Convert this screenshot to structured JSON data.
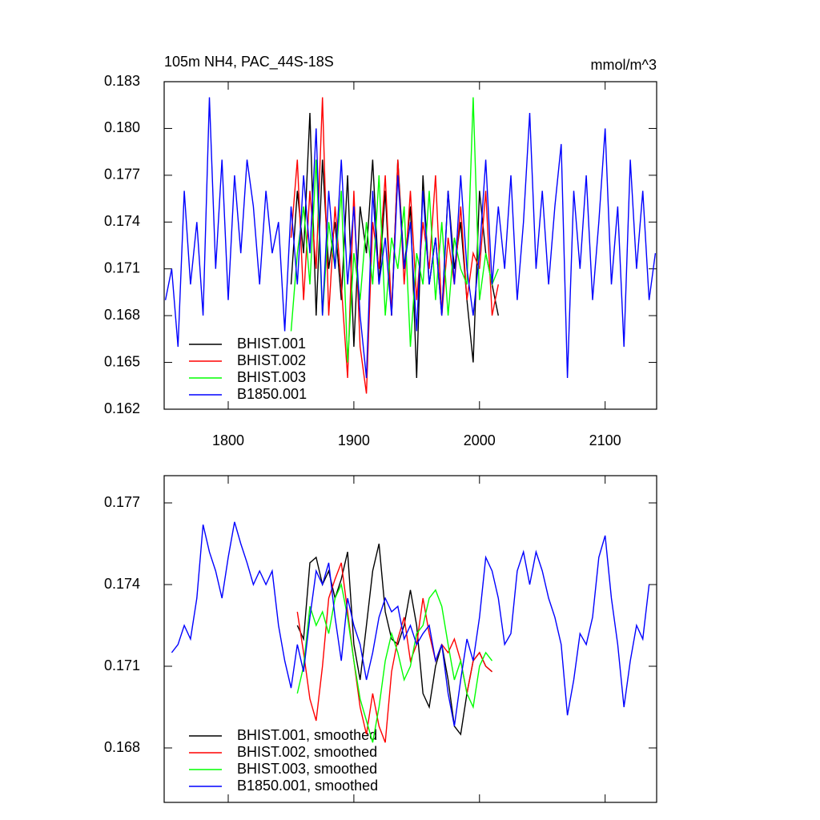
{
  "chart_data": [
    {
      "type": "line",
      "title": "105m NH4, PAC_44S-18S",
      "units": "mmol/m^3",
      "xlim": [
        1749,
        2141
      ],
      "xticks": [
        1800,
        1900,
        2000,
        2100
      ],
      "ylim": [
        0.162,
        0.183
      ],
      "yticks": [
        0.162,
        0.165,
        0.168,
        0.171,
        0.174,
        0.177,
        {
          "value": 0.18,
          "label": "0.180"
        },
        0.183
      ],
      "series": [
        {
          "name": "BHIST.001",
          "color": "#000000",
          "x": [
            1850,
            1855,
            1860,
            1865,
            1870,
            1875,
            1880,
            1885,
            1890,
            1895,
            1900,
            1905,
            1910,
            1915,
            1920,
            1925,
            1930,
            1935,
            1940,
            1945,
            1950,
            1955,
            1960,
            1965,
            1970,
            1975,
            1980,
            1985,
            1990,
            1995,
            2000,
            2005,
            2010,
            2015
          ],
          "values": [
            0.17,
            0.176,
            0.172,
            0.181,
            0.168,
            0.178,
            0.171,
            0.174,
            0.169,
            0.177,
            0.166,
            0.175,
            0.172,
            0.178,
            0.17,
            0.176,
            0.168,
            0.178,
            0.171,
            0.175,
            0.164,
            0.177,
            0.17,
            0.173,
            0.168,
            0.176,
            0.171,
            0.174,
            0.169,
            0.165,
            0.176,
            0.172,
            0.17,
            0.168
          ]
        },
        {
          "name": "BHIST.002",
          "color": "#ff0000",
          "x": [
            1850,
            1855,
            1860,
            1865,
            1870,
            1875,
            1880,
            1885,
            1890,
            1895,
            1900,
            1905,
            1910,
            1915,
            1920,
            1925,
            1930,
            1935,
            1940,
            1945,
            1950,
            1955,
            1960,
            1965,
            1970,
            1975,
            1980,
            1985,
            1990,
            1995,
            2000,
            2005,
            2010,
            2015
          ],
          "values": [
            0.173,
            0.178,
            0.169,
            0.176,
            0.171,
            0.182,
            0.168,
            0.175,
            0.17,
            0.164,
            0.176,
            0.166,
            0.163,
            0.174,
            0.171,
            0.177,
            0.168,
            0.178,
            0.17,
            0.176,
            0.169,
            0.174,
            0.171,
            0.177,
            0.168,
            0.173,
            0.17,
            0.175,
            0.169,
            0.172,
            0.171,
            0.176,
            0.168,
            0.17
          ]
        },
        {
          "name": "BHIST.003",
          "color": "#00ff00",
          "x": [
            1850,
            1855,
            1860,
            1865,
            1870,
            1875,
            1880,
            1885,
            1890,
            1895,
            1900,
            1905,
            1910,
            1915,
            1920,
            1925,
            1930,
            1935,
            1940,
            1945,
            1950,
            1955,
            1960,
            1965,
            1970,
            1975,
            1980,
            1985,
            1990,
            1995,
            2000,
            2005,
            2010,
            2015
          ],
          "values": [
            0.167,
            0.172,
            0.175,
            0.17,
            0.178,
            0.168,
            0.174,
            0.171,
            0.176,
            0.165,
            0.172,
            0.169,
            0.174,
            0.17,
            0.177,
            0.168,
            0.173,
            0.171,
            0.175,
            0.166,
            0.172,
            0.17,
            0.176,
            0.169,
            0.174,
            0.168,
            0.173,
            0.171,
            0.17,
            0.182,
            0.169,
            0.172,
            0.17,
            0.171
          ]
        },
        {
          "name": "B1850.001",
          "color": "#0000ff",
          "x": [
            1750,
            1755,
            1760,
            1765,
            1770,
            1775,
            1780,
            1785,
            1790,
            1795,
            1800,
            1805,
            1810,
            1815,
            1820,
            1825,
            1830,
            1835,
            1840,
            1845,
            1850,
            1855,
            1860,
            1865,
            1870,
            1875,
            1880,
            1885,
            1890,
            1895,
            1900,
            1905,
            1910,
            1915,
            1920,
            1925,
            1930,
            1935,
            1940,
            1945,
            1950,
            1955,
            1960,
            1965,
            1970,
            1975,
            1980,
            1985,
            1990,
            1995,
            2000,
            2005,
            2010,
            2015,
            2020,
            2025,
            2030,
            2035,
            2040,
            2045,
            2050,
            2055,
            2060,
            2065,
            2070,
            2075,
            2080,
            2085,
            2090,
            2095,
            2100,
            2105,
            2110,
            2115,
            2120,
            2125,
            2130,
            2135,
            2140
          ],
          "values": [
            0.169,
            0.171,
            0.166,
            0.176,
            0.17,
            0.174,
            0.168,
            0.182,
            0.171,
            0.178,
            0.169,
            0.177,
            0.172,
            0.178,
            0.175,
            0.17,
            0.176,
            0.172,
            0.174,
            0.167,
            0.175,
            0.17,
            0.177,
            0.172,
            0.18,
            0.168,
            0.176,
            0.171,
            0.178,
            0.17,
            0.175,
            0.168,
            0.164,
            0.176,
            0.17,
            0.173,
            0.168,
            0.177,
            0.171,
            0.174,
            0.167,
            0.176,
            0.17,
            0.173,
            0.168,
            0.176,
            0.17,
            0.177,
            0.171,
            0.168,
            0.172,
            0.178,
            0.17,
            0.175,
            0.171,
            0.177,
            0.169,
            0.174,
            0.181,
            0.171,
            0.176,
            0.17,
            0.175,
            0.179,
            0.164,
            0.176,
            0.171,
            0.177,
            0.169,
            0.174,
            0.18,
            0.17,
            0.175,
            0.166,
            0.178,
            0.171,
            0.176,
            0.169,
            0.172
          ]
        }
      ]
    },
    {
      "type": "line",
      "xlim": [
        1749,
        2141
      ],
      "xticks": [
        1800,
        1900,
        2000,
        2100
      ],
      "ylim": [
        0.166,
        0.178
      ],
      "yticks": [
        0.168,
        0.171,
        0.174,
        0.177
      ],
      "series": [
        {
          "name": "BHIST.001, smoothed",
          "color": "#000000",
          "x": [
            1855,
            1860,
            1865,
            1870,
            1875,
            1880,
            1885,
            1890,
            1895,
            1900,
            1905,
            1910,
            1915,
            1920,
            1925,
            1930,
            1935,
            1940,
            1945,
            1950,
            1955,
            1960,
            1965,
            1970,
            1975,
            1980,
            1985,
            1990,
            1995,
            2000,
            2005,
            2010
          ],
          "values": [
            0.1725,
            0.172,
            0.1748,
            0.175,
            0.174,
            0.1745,
            0.1735,
            0.1742,
            0.1752,
            0.1718,
            0.1705,
            0.1725,
            0.1745,
            0.1755,
            0.173,
            0.172,
            0.1718,
            0.1725,
            0.1738,
            0.1725,
            0.17,
            0.1695,
            0.171,
            0.1718,
            0.1705,
            0.1688,
            0.1685,
            0.17,
            0.1712,
            0.1715,
            0.171,
            0.1708
          ]
        },
        {
          "name": "BHIST.002, smoothed",
          "color": "#ff0000",
          "x": [
            1855,
            1860,
            1865,
            1870,
            1875,
            1880,
            1885,
            1890,
            1895,
            1900,
            1905,
            1910,
            1915,
            1920,
            1925,
            1930,
            1935,
            1940,
            1945,
            1950,
            1955,
            1960,
            1965,
            1970,
            1975,
            1980,
            1985,
            1990,
            1995,
            2000,
            2005,
            2010
          ],
          "values": [
            0.173,
            0.1715,
            0.1698,
            0.169,
            0.171,
            0.1735,
            0.1742,
            0.1748,
            0.173,
            0.1712,
            0.1695,
            0.1685,
            0.17,
            0.1688,
            0.1682,
            0.1708,
            0.172,
            0.1728,
            0.1712,
            0.1718,
            0.1735,
            0.1722,
            0.1712,
            0.1718,
            0.1715,
            0.172,
            0.1712,
            0.17,
            0.1712,
            0.1715,
            0.171,
            0.1708
          ]
        },
        {
          "name": "BHIST.003, smoothed",
          "color": "#00ff00",
          "x": [
            1855,
            1860,
            1865,
            1870,
            1875,
            1880,
            1885,
            1890,
            1895,
            1900,
            1905,
            1910,
            1915,
            1920,
            1925,
            1930,
            1935,
            1940,
            1945,
            1950,
            1955,
            1960,
            1965,
            1970,
            1975,
            1980,
            1985,
            1990,
            1995,
            2000,
            2005,
            2010
          ],
          "values": [
            0.17,
            0.171,
            0.1732,
            0.1725,
            0.173,
            0.1722,
            0.1735,
            0.174,
            0.1728,
            0.1712,
            0.1698,
            0.169,
            0.1682,
            0.1695,
            0.1712,
            0.1722,
            0.1715,
            0.1705,
            0.171,
            0.1722,
            0.1725,
            0.1735,
            0.1738,
            0.1732,
            0.1718,
            0.1705,
            0.1712,
            0.17,
            0.1695,
            0.171,
            0.1715,
            0.1712
          ]
        },
        {
          "name": "B1850.001, smoothed",
          "color": "#0000ff",
          "x": [
            1755,
            1760,
            1765,
            1770,
            1775,
            1780,
            1785,
            1790,
            1795,
            1800,
            1805,
            1810,
            1815,
            1820,
            1825,
            1830,
            1835,
            1840,
            1845,
            1850,
            1855,
            1860,
            1865,
            1870,
            1875,
            1880,
            1885,
            1890,
            1895,
            1900,
            1905,
            1910,
            1915,
            1920,
            1925,
            1930,
            1935,
            1940,
            1945,
            1950,
            1955,
            1960,
            1965,
            1970,
            1975,
            1980,
            1985,
            1990,
            1995,
            2000,
            2005,
            2010,
            2015,
            2020,
            2025,
            2030,
            2035,
            2040,
            2045,
            2050,
            2055,
            2060,
            2065,
            2070,
            2075,
            2080,
            2085,
            2090,
            2095,
            2100,
            2105,
            2110,
            2115,
            2120,
            2125,
            2130,
            2135
          ],
          "values": [
            0.1715,
            0.1718,
            0.1725,
            0.172,
            0.1735,
            0.1762,
            0.1752,
            0.1745,
            0.1735,
            0.175,
            0.1763,
            0.1755,
            0.1748,
            0.174,
            0.1745,
            0.174,
            0.1745,
            0.1725,
            0.1712,
            0.1702,
            0.1718,
            0.1708,
            0.1728,
            0.1745,
            0.174,
            0.1748,
            0.1728,
            0.1712,
            0.1735,
            0.1725,
            0.1718,
            0.1705,
            0.1715,
            0.1728,
            0.1735,
            0.173,
            0.1732,
            0.172,
            0.1725,
            0.1718,
            0.1722,
            0.1725,
            0.1712,
            0.1718,
            0.17,
            0.1688,
            0.1705,
            0.172,
            0.1712,
            0.1728,
            0.175,
            0.1745,
            0.1735,
            0.1718,
            0.1722,
            0.1745,
            0.1752,
            0.174,
            0.1752,
            0.1745,
            0.1735,
            0.1728,
            0.1718,
            0.1692,
            0.1705,
            0.1722,
            0.1718,
            0.1728,
            0.175,
            0.1758,
            0.1735,
            0.1718,
            0.1695,
            0.1712,
            0.1725,
            0.172,
            0.174
          ]
        }
      ]
    }
  ]
}
